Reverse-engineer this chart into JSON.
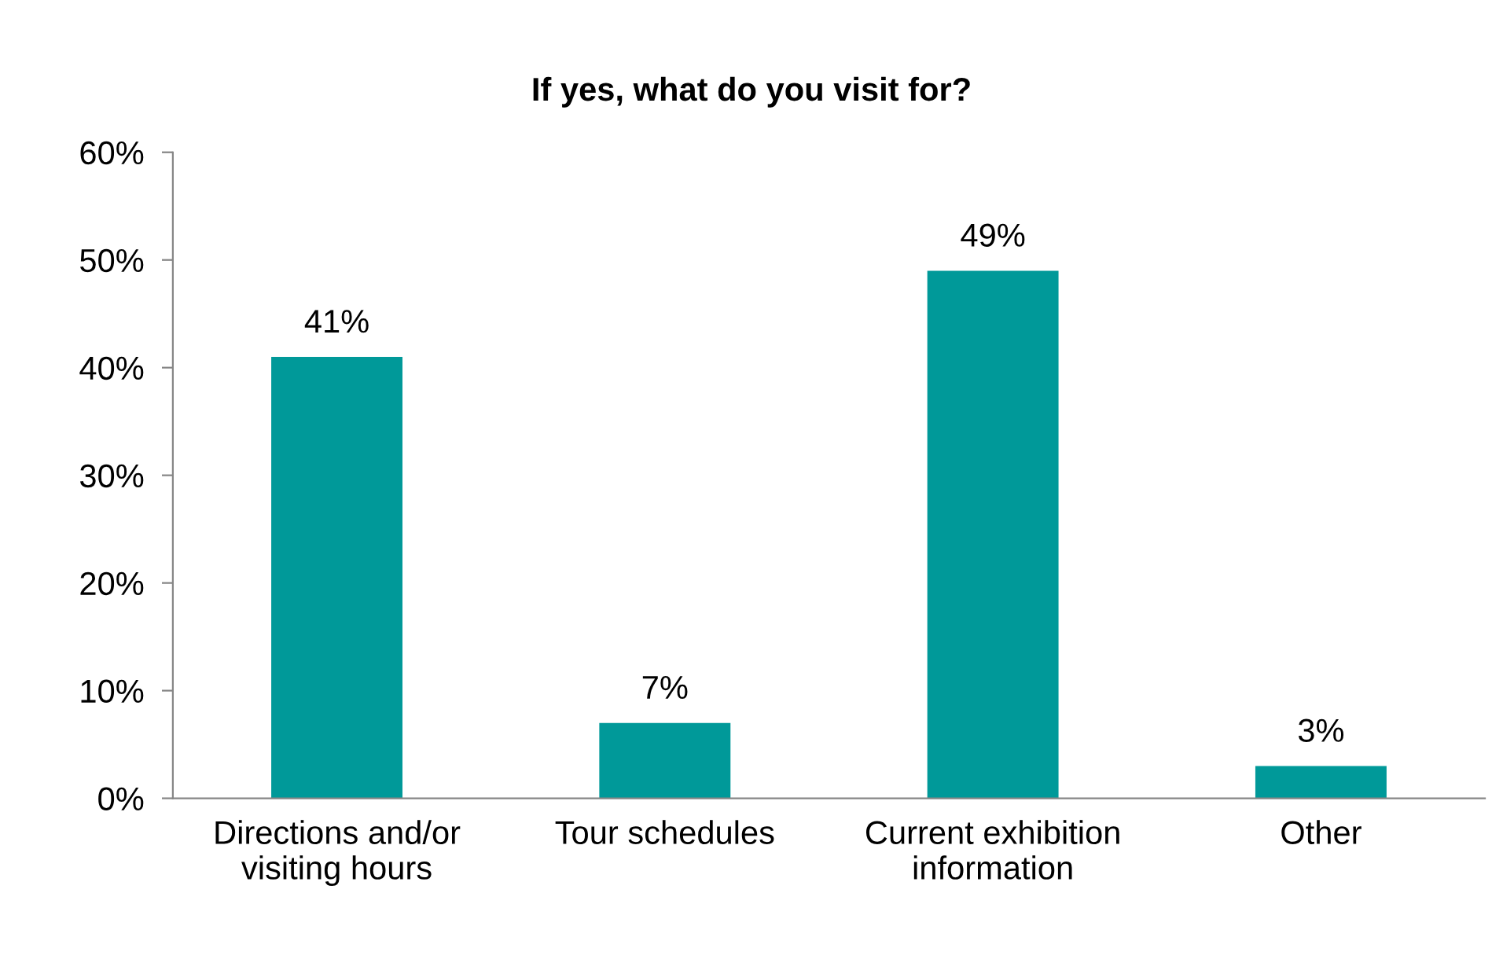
{
  "chart_data": {
    "type": "bar",
    "title": "If yes, what do you visit for?",
    "categories": [
      "Directions and/or\nvisiting hours",
      "Tour schedules",
      "Current exhibition\ninformation",
      "Other"
    ],
    "values": [
      41,
      7,
      49,
      3
    ],
    "color": "#009999",
    "value_labels": [
      "41%",
      "7%",
      "49%",
      "3%"
    ],
    "ylim": [
      0,
      60
    ],
    "yticks": [
      {
        "value": 0,
        "label": "0%"
      },
      {
        "value": 10,
        "label": "10%"
      },
      {
        "value": 20,
        "label": "20%"
      },
      {
        "value": 30,
        "label": "30%"
      },
      {
        "value": 40,
        "label": "40%"
      },
      {
        "value": 50,
        "label": "50%"
      },
      {
        "value": 60,
        "label": "60%"
      }
    ],
    "grid": false
  }
}
